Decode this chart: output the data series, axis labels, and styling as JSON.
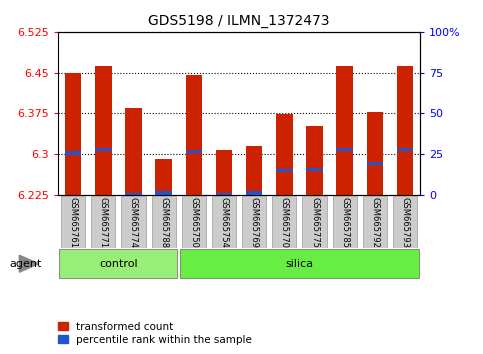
{
  "title": "GDS5198 / ILMN_1372473",
  "samples": [
    "GSM665761",
    "GSM665771",
    "GSM665774",
    "GSM665788",
    "GSM665750",
    "GSM665754",
    "GSM665769",
    "GSM665770",
    "GSM665775",
    "GSM665785",
    "GSM665792",
    "GSM665793"
  ],
  "groups": [
    "control",
    "control",
    "control",
    "control",
    "silica",
    "silica",
    "silica",
    "silica",
    "silica",
    "silica",
    "silica",
    "silica"
  ],
  "transformed_count": [
    6.45,
    6.462,
    6.385,
    6.29,
    6.445,
    6.308,
    6.315,
    6.373,
    6.352,
    6.462,
    6.378,
    6.462
  ],
  "percentile_rank": [
    6.302,
    6.308,
    6.225,
    6.228,
    6.304,
    6.225,
    6.228,
    6.27,
    6.272,
    6.308,
    6.283,
    6.308
  ],
  "ylim_left": [
    6.225,
    6.525
  ],
  "ylim_right": [
    0,
    100
  ],
  "yticks_left": [
    6.225,
    6.3,
    6.375,
    6.45,
    6.525
  ],
  "yticks_right": [
    0,
    25,
    50,
    75,
    100
  ],
  "bar_color": "#cc2200",
  "pct_color": "#2255cc",
  "ctrl_color": "#99ee77",
  "silica_color": "#66ee44",
  "tick_bg": "#cccccc",
  "agent_label": "agent",
  "legend_items": [
    "transformed count",
    "percentile rank within the sample"
  ],
  "background_color": "#ffffff",
  "n_control": 4,
  "n_silica": 8
}
